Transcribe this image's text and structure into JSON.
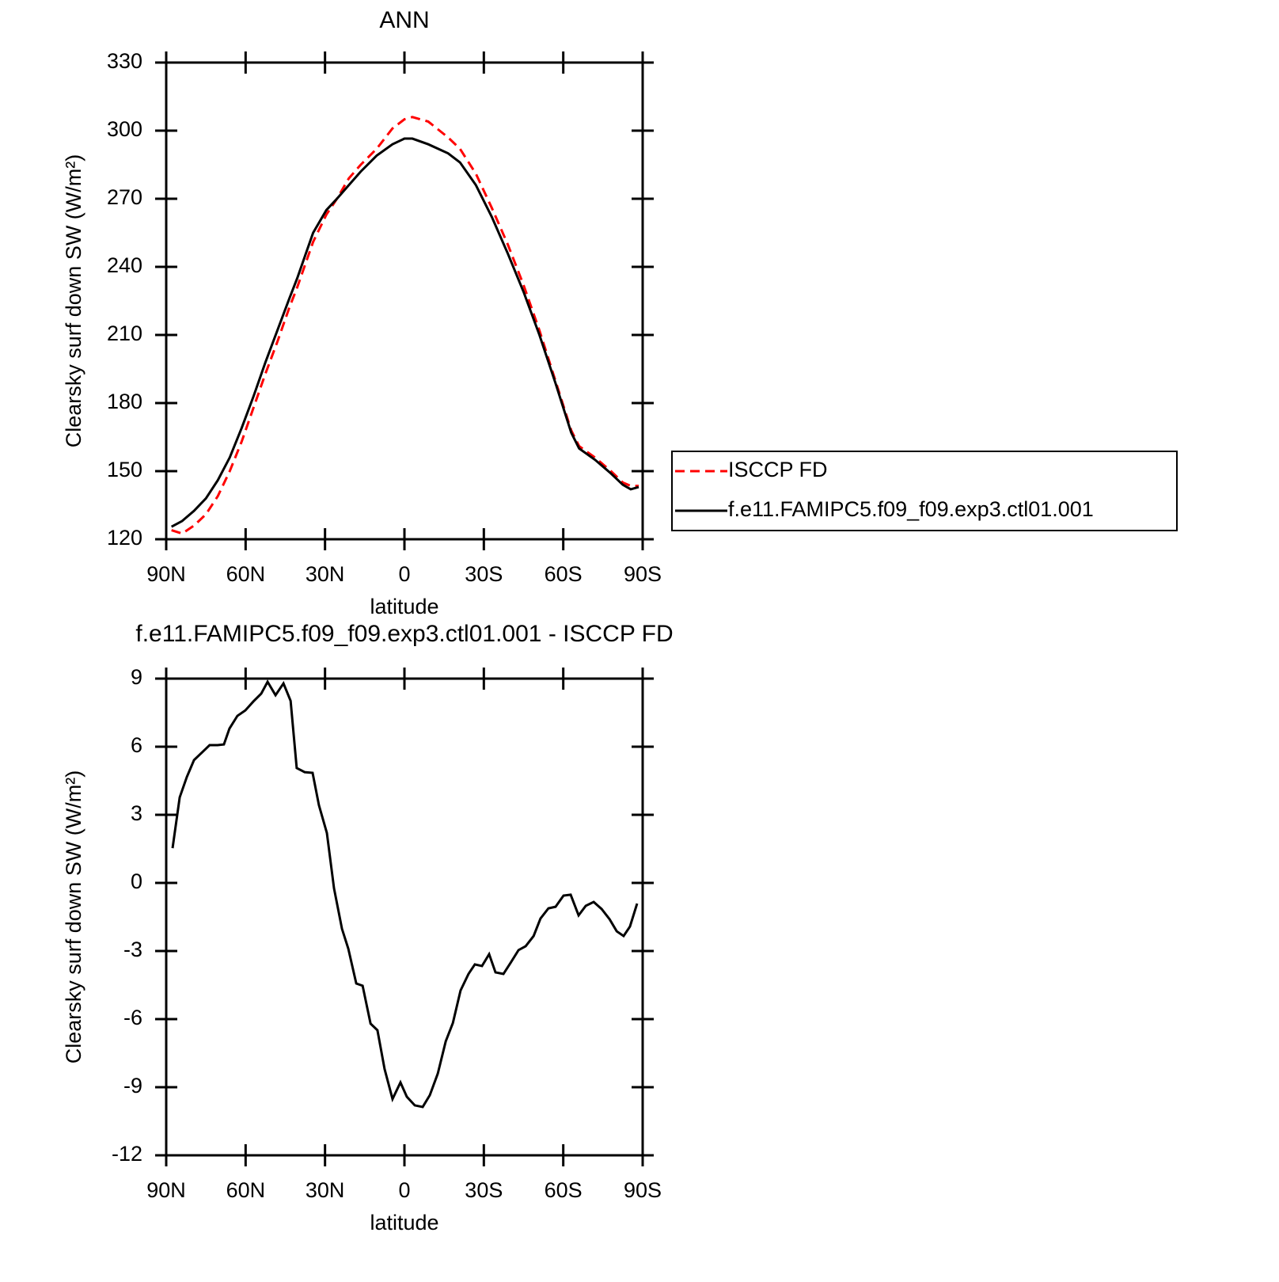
{
  "chart_data": [
    {
      "type": "line",
      "title": "ANN",
      "xlabel": "latitude",
      "ylabel": "Clearsky surf down SW (W/m²)",
      "x": [
        88,
        84,
        79.5,
        75,
        70.5,
        66,
        61.5,
        57,
        52.5,
        48,
        43.5,
        40.5,
        37.5,
        34.5,
        29.5,
        25.5,
        21,
        16.5,
        10.5,
        4.5,
        0,
        -3,
        -9,
        -16.5,
        -21,
        -27,
        -33,
        -39,
        -45,
        -51,
        -57,
        -63,
        -66,
        -72,
        -78,
        -82.5,
        -85.5,
        -88.5
      ],
      "series": [
        {
          "name": "ISCCP FD",
          "color": "#ff0000",
          "dashed": true,
          "values": [
            124,
            122.5,
            126,
            131,
            139,
            150,
            163,
            178,
            193,
            207,
            222,
            231,
            241,
            251,
            263,
            270,
            279,
            285,
            292,
            301,
            305,
            306,
            304,
            297,
            292,
            281,
            266,
            250,
            232,
            212,
            190,
            168,
            161,
            156,
            150,
            145,
            143.5,
            143.5
          ]
        },
        {
          "name": "f.e11.FAMIPC5.f09_f09.exp3.ctl01.001",
          "color": "#000000",
          "dashed": false,
          "values": [
            125.5,
            128,
            132.5,
            138,
            146,
            156,
            169,
            183,
            198,
            212,
            226,
            235,
            245,
            255,
            265,
            270,
            276,
            282,
            289,
            294,
            296.5,
            296.5,
            294,
            290,
            286,
            276,
            262,
            246,
            229,
            210,
            189,
            167,
            160,
            155,
            149,
            144,
            142,
            143
          ]
        }
      ],
      "xlim": [
        90,
        -90
      ],
      "xticks": [
        {
          "value": 90,
          "label": "90N"
        },
        {
          "value": 60,
          "label": "60N"
        },
        {
          "value": 30,
          "label": "30N"
        },
        0,
        {
          "value": -30,
          "label": "30S"
        },
        {
          "value": -60,
          "label": "60S"
        },
        {
          "value": -90,
          "label": "90S"
        }
      ],
      "ylim": [
        120,
        330
      ],
      "yticks": [
        120,
        150,
        180,
        210,
        240,
        270,
        300,
        330
      ]
    },
    {
      "type": "line",
      "title": "f.e11.FAMIPC5.f09_f09.exp3.ctl01.001 - ISCCP FD",
      "xlabel": "latitude",
      "ylabel": "Clearsky surf down SW (W/m²)",
      "x": [
        87.6,
        84.9,
        82.2,
        79.5,
        73.6,
        70.6,
        68.2,
        66.1,
        63.1,
        60.1,
        57.1,
        54.1,
        51.7,
        48.7,
        45.7,
        43.0,
        40.7,
        37.7,
        34.7,
        32.3,
        29.3,
        26.6,
        23.6,
        21.2,
        18.2,
        15.8,
        12.8,
        10.2,
        7.5,
        4.5,
        1.5,
        -0.9,
        -3.9,
        -6.9,
        -9.6,
        -12.6,
        -15.6,
        -18.3,
        -21.2,
        -24.2,
        -26.6,
        -29.3,
        -32.0,
        -34.4,
        -37.4,
        -40.1,
        -43.1,
        -45.8,
        -48.8,
        -51.4,
        -54.4,
        -57.1,
        -60.1,
        -62.8,
        -65.8,
        -68.5,
        -71.5,
        -74.5,
        -77.5,
        -80.2,
        -82.8,
        -85.2,
        -87.9
      ],
      "series": [
        {
          "color": "#000000",
          "dashed": false,
          "values": [
            1.53,
            3.77,
            4.67,
            5.41,
            6.07,
            6.07,
            6.1,
            6.8,
            7.36,
            7.6,
            7.99,
            8.34,
            8.86,
            8.27,
            8.79,
            8.02,
            5.06,
            4.88,
            4.85,
            3.42,
            2.2,
            -0.24,
            -2.02,
            -2.9,
            -4.43,
            -4.53,
            -6.2,
            -6.49,
            -8.2,
            -9.52,
            -8.79,
            -9.42,
            -9.8,
            -9.87,
            -9.35,
            -8.4,
            -6.98,
            -6.17,
            -4.74,
            -4.01,
            -3.59,
            -3.66,
            -3.14,
            -3.94,
            -4.01,
            -3.52,
            -2.96,
            -2.79,
            -2.34,
            -1.57,
            -1.12,
            -1.05,
            -0.56,
            -0.52,
            -1.43,
            -1.01,
            -0.84,
            -1.15,
            -1.6,
            -2.13,
            -2.34,
            -1.92,
            -0.91
          ]
        }
      ],
      "xlim": [
        90,
        -90
      ],
      "xticks": [
        {
          "value": 90,
          "label": "90N"
        },
        {
          "value": 60,
          "label": "60N"
        },
        {
          "value": 30,
          "label": "30N"
        },
        0,
        {
          "value": -30,
          "label": "30S"
        },
        {
          "value": -60,
          "label": "60S"
        },
        {
          "value": -90,
          "label": "90S"
        }
      ],
      "ylim": [
        -12,
        9
      ],
      "yticks": [
        -12,
        -9,
        -6,
        -3,
        0,
        3,
        6,
        9
      ]
    }
  ]
}
